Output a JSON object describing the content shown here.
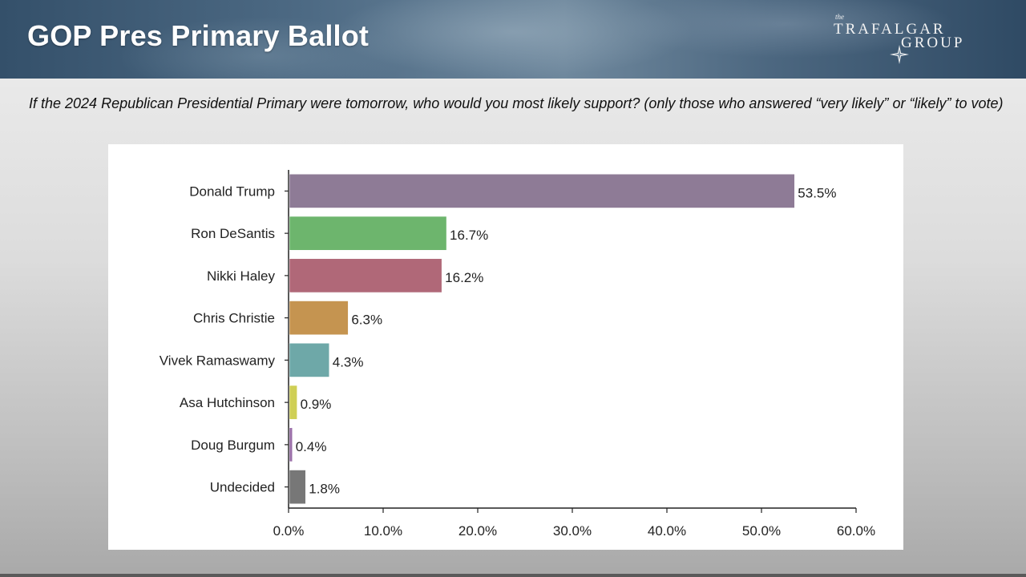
{
  "header": {
    "title": "GOP Pres Primary Ballot",
    "logo": {
      "the": "the",
      "line1": "TRAFALGAR",
      "line2": "GROUP"
    }
  },
  "question": "If the 2024 Republican Presidential Primary were tomorrow, who would you most likely support? (only those who answered “very likely” or “likely” to vote)",
  "chart_data": {
    "type": "bar",
    "orientation": "horizontal",
    "title": "",
    "xlabel": "",
    "ylabel": "",
    "categories": [
      "Donald Trump",
      "Ron DeSantis",
      "Nikki Haley",
      "Chris Christie",
      "Vivek Ramaswamy",
      "Asa Hutchinson",
      "Doug Burgum",
      "Undecided"
    ],
    "values": [
      53.5,
      16.7,
      16.2,
      6.3,
      4.3,
      0.9,
      0.4,
      1.8
    ],
    "value_labels": [
      "53.5%",
      "16.7%",
      "16.2%",
      "6.3%",
      "4.3%",
      "0.9%",
      "0.4%",
      "1.8%"
    ],
    "colors": [
      "#8e7b96",
      "#6db56d",
      "#b06878",
      "#c59450",
      "#6ea8a8",
      "#cfcf55",
      "#9a6fa8",
      "#777777"
    ],
    "xlim": [
      0,
      60
    ],
    "xticks": [
      0,
      10,
      20,
      30,
      40,
      50,
      60
    ],
    "xtick_labels": [
      "0.0%",
      "10.0%",
      "20.0%",
      "30.0%",
      "40.0%",
      "50.0%",
      "60.0%"
    ],
    "grid": false,
    "legend": "none"
  }
}
